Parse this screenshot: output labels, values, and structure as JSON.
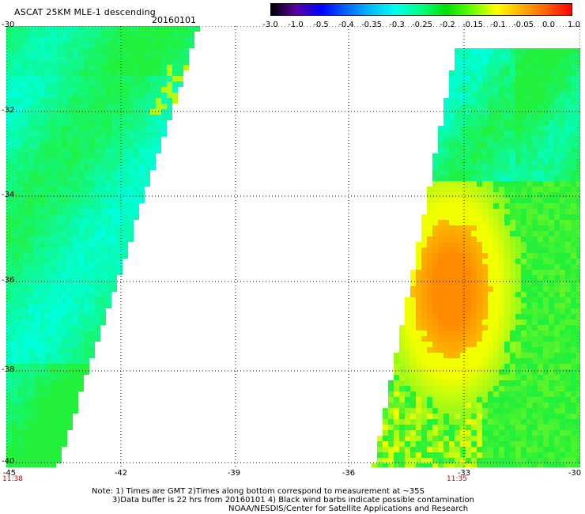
{
  "header": {
    "title": "ASCAT 25KM MLE-1 descending",
    "date": "20160101"
  },
  "colorbar": {
    "labels": [
      "-3.0",
      "-1.0",
      "-0.5",
      "-0.4",
      "-0.35",
      "-0.3",
      "-0.25",
      "-0.2",
      "-0.15",
      "-0.1",
      "-0.05",
      "0.0",
      "1.0"
    ],
    "colors": [
      "#000000",
      "#5a00a0",
      "#0000ff",
      "#0066ff",
      "#00bfff",
      "#00ffee",
      "#00ff80",
      "#00e000",
      "#66ff00",
      "#ffff00",
      "#ffb000",
      "#ff6000",
      "#ff0000"
    ]
  },
  "map": {
    "lat_labels": [
      "-30",
      "-32",
      "-34",
      "-36",
      "-38",
      "-40"
    ],
    "lon_labels": [
      "-45",
      "-42",
      "-39",
      "-36",
      "-33",
      "-30"
    ],
    "swath_times": [
      "11:38",
      "11:35"
    ],
    "colors": {
      "cyan": "#00ffdc",
      "green": "#22f03a",
      "yellow": "#f2ff00",
      "orange": "#ff8a00",
      "grid": "#000000"
    }
  },
  "notes": [
    "Note: 1) Times are GMT 2)Times along bottom correspond to measurement at ~35S",
    "3)Data buffer is 22 hrs from 20160101 4) Black wind barbs indicate possible contamination",
    "NOAA/NESDIS/Center for Satellite Applications and Research"
  ]
}
